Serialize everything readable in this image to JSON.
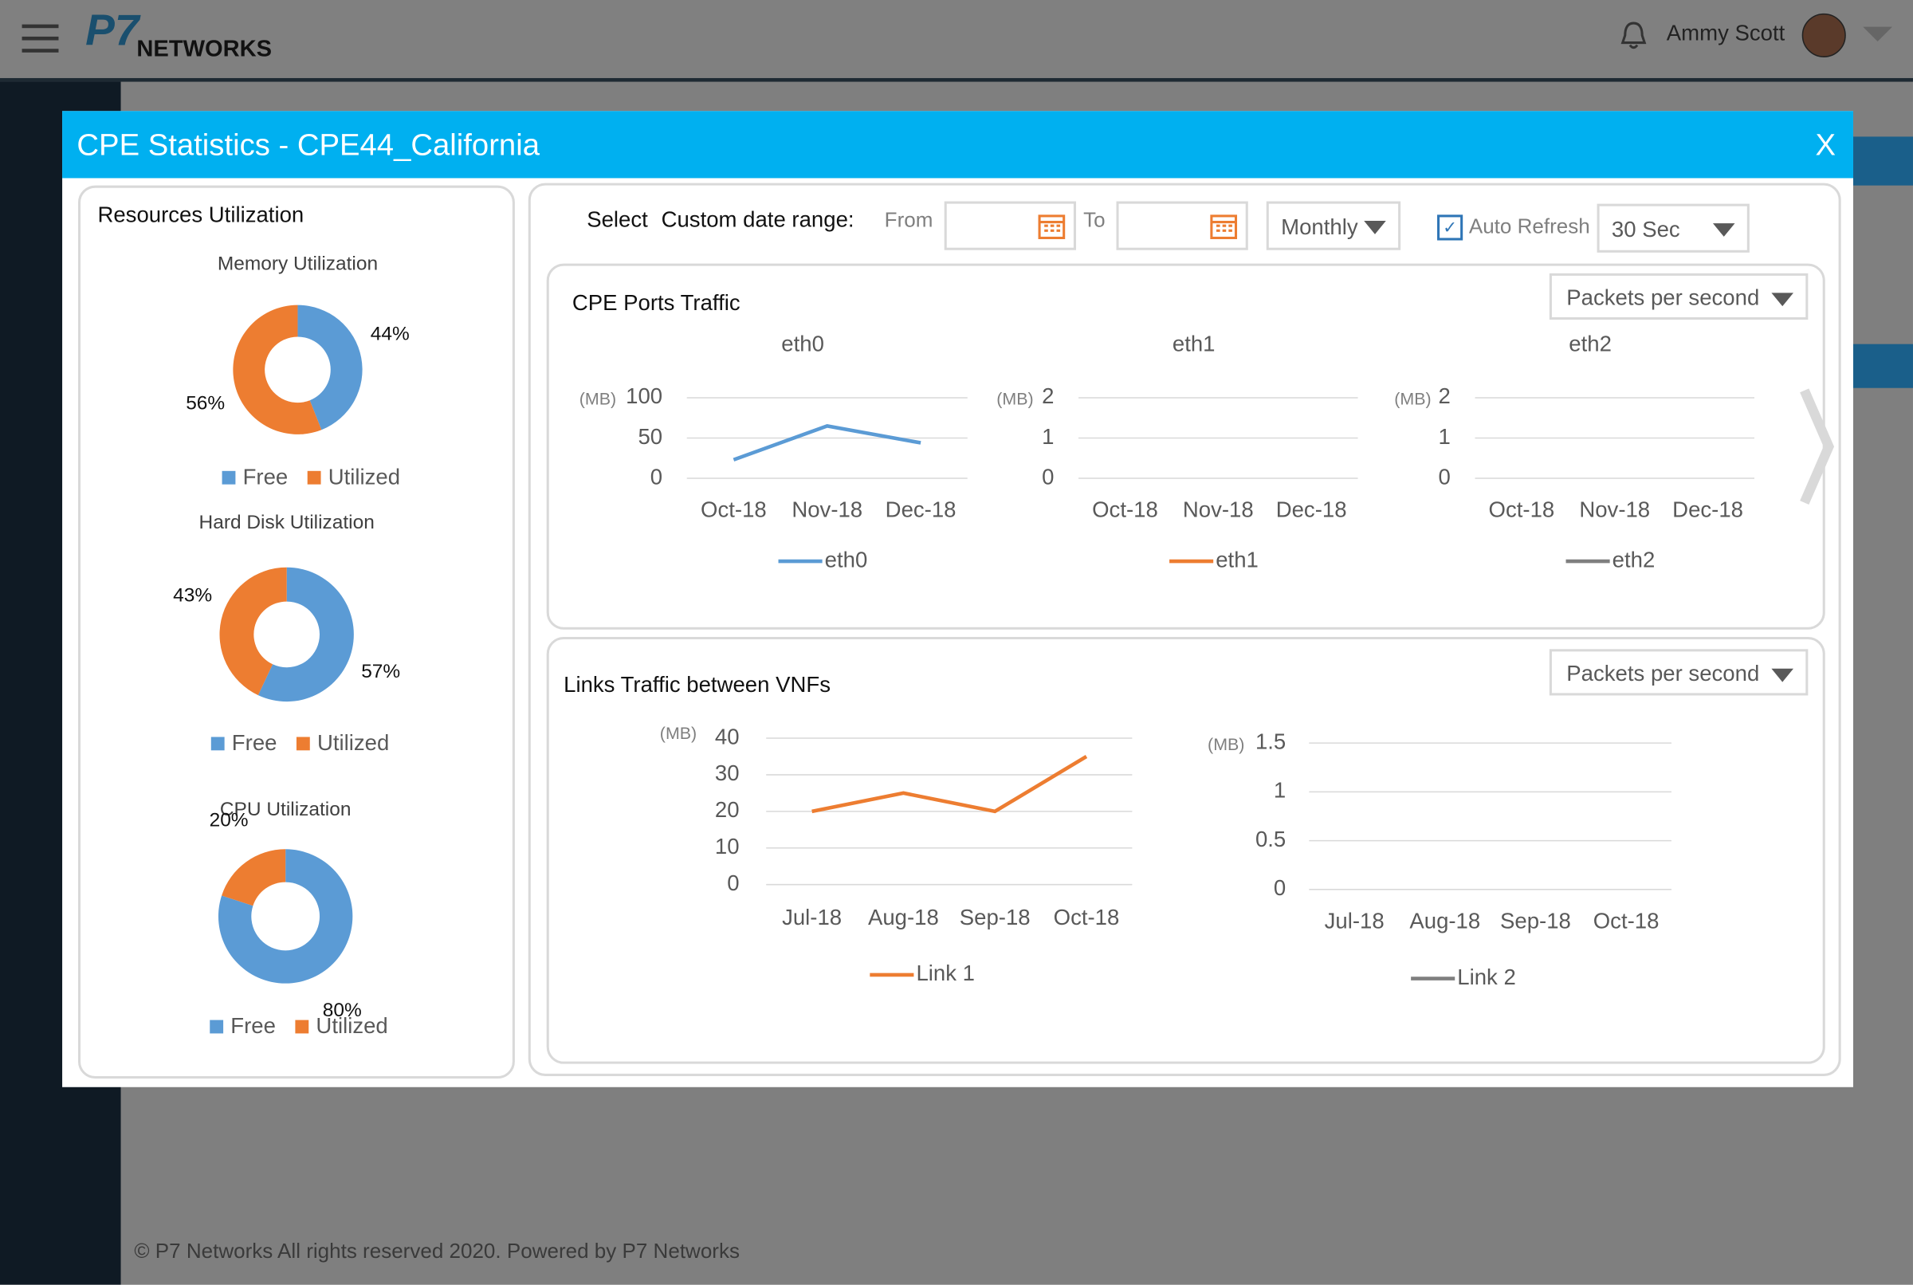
{
  "header": {
    "logo_mark": "P7",
    "logo_text": "NETWORKS",
    "user": "Ammy Scott"
  },
  "footer": "© P7 Networks All rights reserved 2020. Powered by P7 Networks",
  "modal": {
    "title": "CPE Statistics - CPE44_California",
    "close": "X",
    "resources": {
      "title": "Resources Utilization",
      "charts": [
        {
          "type": "pie",
          "title": "Memory Utilization",
          "categories": [
            "Free",
            "Utilized"
          ],
          "values": [
            44,
            56
          ],
          "value_labels": [
            "44%",
            "56%"
          ],
          "colors": [
            "#5b9bd5",
            "#ed7d31"
          ]
        },
        {
          "type": "pie",
          "title": "Hard Disk Utilization",
          "categories": [
            "Free",
            "Utilized"
          ],
          "values": [
            57,
            43
          ],
          "value_labels": [
            "57%",
            "43%"
          ],
          "colors": [
            "#5b9bd5",
            "#ed7d31"
          ]
        },
        {
          "type": "pie",
          "title": "CPU Utilization",
          "categories": [
            "Free",
            "Utilized"
          ],
          "values": [
            80,
            20
          ],
          "value_labels": [
            "80%",
            "20%"
          ],
          "colors": [
            "#5b9bd5",
            "#ed7d31"
          ]
        }
      ]
    },
    "controls": {
      "select": "Select",
      "range": "Custom date range:",
      "from": "From",
      "to": "To",
      "period": "Monthly",
      "auto_refresh": "Auto Refresh",
      "interval": "30 Sec"
    },
    "ports": {
      "title": "CPE Ports Traffic",
      "metric": "Packets per second",
      "charts": [
        {
          "type": "line",
          "title": "eth0",
          "unit": "(MB)",
          "categories": [
            "Oct-18",
            "Nov-18",
            "Dec-18"
          ],
          "ylim": [
            0,
            100
          ],
          "yticks": [
            0,
            50,
            100
          ],
          "series": [
            {
              "name": "eth0",
              "color": "#5b9bd5",
              "values": [
                23,
                65,
                44
              ]
            }
          ]
        },
        {
          "type": "line",
          "title": "eth1",
          "unit": "(MB)",
          "categories": [
            "Oct-18",
            "Nov-18",
            "Dec-18"
          ],
          "ylim": [
            0,
            2
          ],
          "yticks": [
            0,
            1,
            2
          ],
          "series": [
            {
              "name": "eth1",
              "color": "#ed7d31",
              "values": [
                null,
                null,
                null
              ]
            }
          ]
        },
        {
          "type": "line",
          "title": "eth2",
          "unit": "(MB)",
          "categories": [
            "Oct-18",
            "Nov-18",
            "Dec-18"
          ],
          "ylim": [
            0,
            2
          ],
          "yticks": [
            0,
            1,
            2
          ],
          "series": [
            {
              "name": "eth2",
              "color": "#7f7f7f",
              "values": [
                null,
                null,
                null
              ]
            }
          ]
        }
      ]
    },
    "links": {
      "title": "Links Traffic between VNFs",
      "metric": "Packets per second",
      "charts": [
        {
          "type": "line",
          "unit": "(MB)",
          "categories": [
            "Jul-18",
            "Aug-18",
            "Sep-18",
            "Oct-18"
          ],
          "ylim": [
            0,
            40
          ],
          "yticks": [
            0,
            10,
            20,
            30,
            40
          ],
          "series": [
            {
              "name": "Link 1",
              "color": "#ed7d31",
              "values": [
                20,
                25,
                20,
                35
              ]
            }
          ]
        },
        {
          "type": "line",
          "unit": "(MB)",
          "categories": [
            "Jul-18",
            "Aug-18",
            "Sep-18",
            "Oct-18"
          ],
          "ylim": [
            0,
            1.5
          ],
          "yticks": [
            0,
            0.5,
            1,
            1.5
          ],
          "series": [
            {
              "name": "Link 2",
              "color": "#7f7f7f",
              "values": [
                null,
                null,
                null,
                null
              ]
            }
          ]
        }
      ]
    }
  }
}
